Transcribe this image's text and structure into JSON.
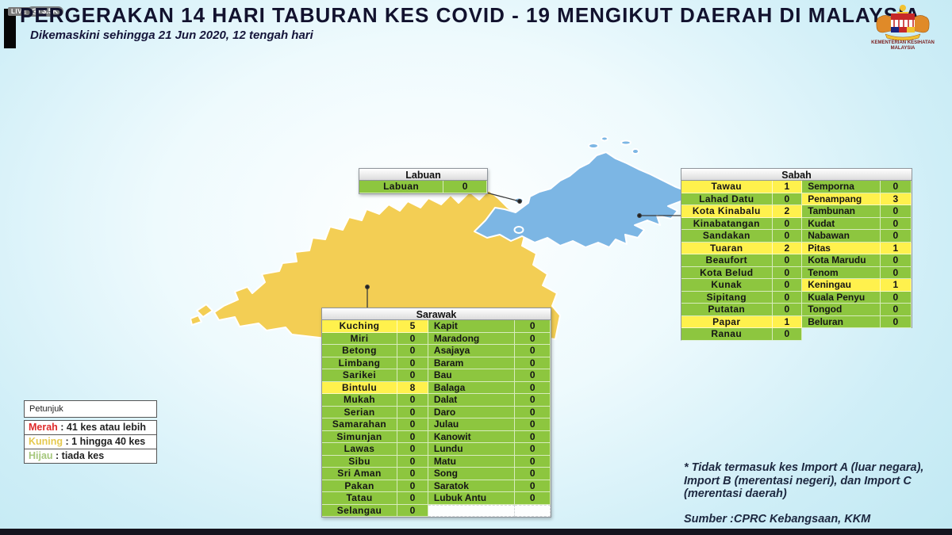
{
  "stream": {
    "live": "LIVE",
    "viewers": "3.5K"
  },
  "header": {
    "title": "PERGERAKAN 14 HARI TABURAN KES COVID - 19 MENGIKUT DAERAH DI MALAYSIA",
    "subtitle": "Dikemaskini sehingga 21 Jun 2020, 12 tengah hari"
  },
  "logo": {
    "line1": "KEMENTERIAN KESIHATAN",
    "line2": "MALAYSIA"
  },
  "colors": {
    "green_cell": "#8DC63F",
    "yellow_cell": "#FFF14D",
    "sarawak_fill": "#F3CE54",
    "sabah_fill": "#7CB6E4",
    "legend_red": "#DE2B2B",
    "legend_yellow": "#E5C94F",
    "legend_green": "#A5C77C"
  },
  "legend": {
    "title": "Petunjuk",
    "items": [
      {
        "label": "Merah",
        "desc": ": 41 kes atau lebih",
        "color_key": "legend_red"
      },
      {
        "label": "Kuning",
        "desc": ": 1 hingga 40 kes",
        "color_key": "legend_yellow"
      },
      {
        "label": "Hijau",
        "desc": ": tiada kes",
        "color_key": "legend_green"
      }
    ]
  },
  "tables": {
    "labuan": {
      "title": "Labuan",
      "left": [
        {
          "n": "Labuan",
          "v": "0",
          "hl": false
        }
      ],
      "right": null,
      "tail": "none"
    },
    "sabah": {
      "title": "Sabah",
      "left": [
        {
          "n": "Tawau",
          "v": "1",
          "hl": true
        },
        {
          "n": "Lahad Datu",
          "v": "0",
          "hl": false
        },
        {
          "n": "Kota Kinabalu",
          "v": "2",
          "hl": true
        },
        {
          "n": "Kinabatangan",
          "v": "0",
          "hl": false
        },
        {
          "n": "Sandakan",
          "v": "0",
          "hl": false
        },
        {
          "n": "Tuaran",
          "v": "2",
          "hl": true
        },
        {
          "n": "Beaufort",
          "v": "0",
          "hl": false
        },
        {
          "n": "Kota Belud",
          "v": "0",
          "hl": false
        },
        {
          "n": "Kunak",
          "v": "0",
          "hl": false
        },
        {
          "n": "Sipitang",
          "v": "0",
          "hl": false
        },
        {
          "n": "Putatan",
          "v": "0",
          "hl": false
        },
        {
          "n": "Papar",
          "v": "1",
          "hl": true
        },
        {
          "n": "Ranau",
          "v": "0",
          "hl": false
        }
      ],
      "right": [
        {
          "n": "Semporna",
          "v": "0",
          "hl": false
        },
        {
          "n": "Penampang",
          "v": "3",
          "hl": true
        },
        {
          "n": "Tambunan",
          "v": "0",
          "hl": false
        },
        {
          "n": "Kudat",
          "v": "0",
          "hl": false
        },
        {
          "n": "Nabawan",
          "v": "0",
          "hl": false
        },
        {
          "n": "Pitas",
          "v": "1",
          "hl": true
        },
        {
          "n": "Kota Marudu",
          "v": "0",
          "hl": false
        },
        {
          "n": "Tenom",
          "v": "0",
          "hl": false
        },
        {
          "n": "Keningau",
          "v": "1",
          "hl": true
        },
        {
          "n": "Kuala Penyu",
          "v": "0",
          "hl": false
        },
        {
          "n": "Tongod",
          "v": "0",
          "hl": false
        },
        {
          "n": "Beluran",
          "v": "0",
          "hl": false
        }
      ],
      "tail": "none"
    },
    "sarawak": {
      "title": "Sarawak",
      "left": [
        {
          "n": "Kuching",
          "v": "5",
          "hl": true
        },
        {
          "n": "Miri",
          "v": "0",
          "hl": false
        },
        {
          "n": "Betong",
          "v": "0",
          "hl": false
        },
        {
          "n": "Limbang",
          "v": "0",
          "hl": false
        },
        {
          "n": "Sarikei",
          "v": "0",
          "hl": false
        },
        {
          "n": "Bintulu",
          "v": "8",
          "hl": true
        },
        {
          "n": "Mukah",
          "v": "0",
          "hl": false
        },
        {
          "n": "Serian",
          "v": "0",
          "hl": false
        },
        {
          "n": "Samarahan",
          "v": "0",
          "hl": false
        },
        {
          "n": "Simunjan",
          "v": "0",
          "hl": false
        },
        {
          "n": "Lawas",
          "v": "0",
          "hl": false
        },
        {
          "n": "Sibu",
          "v": "0",
          "hl": false
        },
        {
          "n": "Sri Aman",
          "v": "0",
          "hl": false
        },
        {
          "n": "Pakan",
          "v": "0",
          "hl": false
        },
        {
          "n": "Tatau",
          "v": "0",
          "hl": false
        },
        {
          "n": "Selangau",
          "v": "0",
          "hl": false
        }
      ],
      "right": [
        {
          "n": "Kapit",
          "v": "0",
          "hl": false
        },
        {
          "n": "Maradong",
          "v": "0",
          "hl": false
        },
        {
          "n": "Asajaya",
          "v": "0",
          "hl": false
        },
        {
          "n": "Baram",
          "v": "0",
          "hl": false
        },
        {
          "n": "Bau",
          "v": "0",
          "hl": false
        },
        {
          "n": "Balaga",
          "v": "0",
          "hl": false
        },
        {
          "n": "Dalat",
          "v": "0",
          "hl": false
        },
        {
          "n": "Daro",
          "v": "0",
          "hl": false
        },
        {
          "n": "Julau",
          "v": "0",
          "hl": false
        },
        {
          "n": "Kanowit",
          "v": "0",
          "hl": false
        },
        {
          "n": "Lundu",
          "v": "0",
          "hl": false
        },
        {
          "n": "Matu",
          "v": "0",
          "hl": false
        },
        {
          "n": "Song",
          "v": "0",
          "hl": false
        },
        {
          "n": "Saratok",
          "v": "0",
          "hl": false
        },
        {
          "n": "Lubuk Antu",
          "v": "0",
          "hl": false
        }
      ],
      "tail": "empty"
    }
  },
  "footnote": {
    "note": "* Tidak termasuk kes Import A (luar negara), Import B (merentasi negeri),  dan Import C (merentasi daerah)",
    "source": "Sumber :CPRC Kebangsaan,  KKM"
  }
}
